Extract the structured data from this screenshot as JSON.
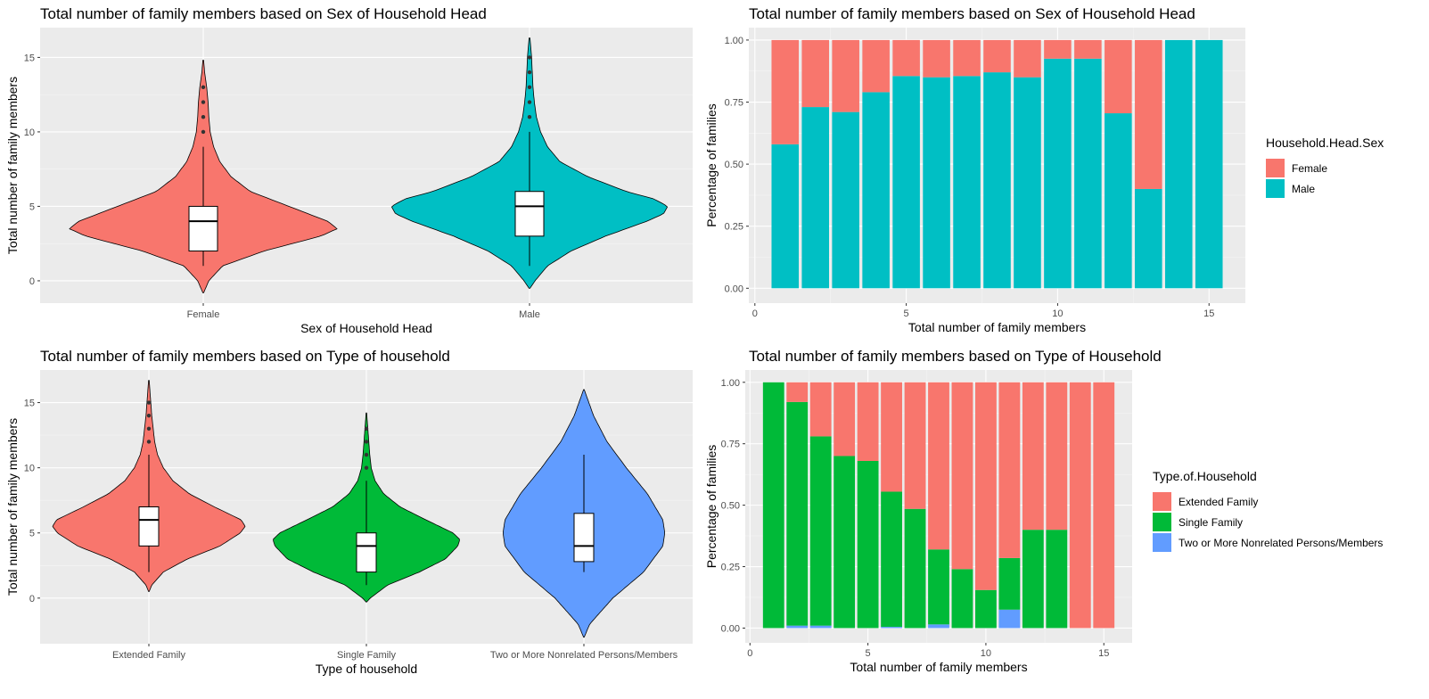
{
  "chart_data": [
    {
      "type": "violin",
      "title": "Total number of family members based on Sex of Household Head",
      "xlabel": "Sex of Household Head",
      "ylabel": "Total number of family members",
      "categories": [
        "Female",
        "Male"
      ],
      "colors": [
        "#F8766D",
        "#00BFC4"
      ],
      "ylim": [
        -1.5,
        17
      ],
      "yticks": [
        0,
        5,
        10,
        15
      ],
      "violins": [
        {
          "category": "Female",
          "profile": [
            [
              -0.8,
              0.003
            ],
            [
              0,
              0.04
            ],
            [
              1,
              0.14
            ],
            [
              2,
              0.44
            ],
            [
              3,
              0.85
            ],
            [
              3.5,
              0.97
            ],
            [
              4,
              0.9
            ],
            [
              5,
              0.62
            ],
            [
              6,
              0.34
            ],
            [
              7,
              0.2
            ],
            [
              8,
              0.12
            ],
            [
              9,
              0.075
            ],
            [
              10,
              0.05
            ],
            [
              11,
              0.04
            ],
            [
              12,
              0.035
            ],
            [
              13,
              0.025
            ],
            [
              14,
              0.01
            ],
            [
              14.8,
              0.003
            ]
          ]
        },
        {
          "category": "Male",
          "profile": [
            [
              -0.5,
              0.003
            ],
            [
              0,
              0.04
            ],
            [
              1,
              0.13
            ],
            [
              2,
              0.3
            ],
            [
              3,
              0.55
            ],
            [
              4,
              0.85
            ],
            [
              4.5,
              0.97
            ],
            [
              5,
              1.0
            ],
            [
              5.5,
              0.9
            ],
            [
              6,
              0.7
            ],
            [
              7,
              0.42
            ],
            [
              8,
              0.22
            ],
            [
              9,
              0.13
            ],
            [
              10,
              0.08
            ],
            [
              11,
              0.05
            ],
            [
              12,
              0.035
            ],
            [
              13,
              0.025
            ],
            [
              14,
              0.02
            ],
            [
              15,
              0.015
            ],
            [
              16.3,
              0.003
            ]
          ]
        }
      ],
      "boxplots": [
        {
          "category": "Female",
          "min": 1,
          "q1": 2,
          "median": 4,
          "q3": 5,
          "max": 9,
          "outliers": [
            10,
            11,
            12,
            13
          ]
        },
        {
          "category": "Male",
          "min": 1,
          "q1": 3,
          "median": 5,
          "q3": 6,
          "max": 10,
          "outliers": [
            11,
            12,
            13,
            14,
            15
          ]
        }
      ]
    },
    {
      "type": "bar",
      "stacked": "fill",
      "title": "Total number of family members based on Sex of Household Head",
      "xlabel": "Total number of family members",
      "ylabel": "Percentage of families",
      "legend_title": "Household.Head.Sex",
      "legend_position": "right",
      "xlim": [
        -0.2,
        16.2
      ],
      "xticks": [
        0,
        5,
        10,
        15
      ],
      "ylim": [
        -0.06,
        1.05
      ],
      "yticks": [
        "0.00",
        "0.25",
        "0.50",
        "0.75",
        "1.00"
      ],
      "x": [
        1,
        2,
        3,
        4,
        5,
        6,
        7,
        8,
        9,
        10,
        11,
        12,
        13,
        14,
        15
      ],
      "series": [
        {
          "name": "Female",
          "color": "#F8766D",
          "values": [
            0.42,
            0.27,
            0.29,
            0.21,
            0.145,
            0.15,
            0.145,
            0.13,
            0.15,
            0.075,
            0.075,
            0.295,
            0.6,
            0,
            0
          ]
        },
        {
          "name": "Male",
          "color": "#00BFC4",
          "values": [
            0.58,
            0.73,
            0.71,
            0.79,
            0.855,
            0.85,
            0.855,
            0.87,
            0.85,
            0.925,
            0.925,
            0.705,
            0.4,
            1,
            1
          ]
        }
      ]
    },
    {
      "type": "violin",
      "title": "Total number of family members based on Type of household",
      "xlabel": "Type of household",
      "ylabel": "Total number of family members",
      "categories": [
        "Extended Family",
        "Single Family",
        "Two or More Nonrelated Persons/Members"
      ],
      "colors": [
        "#F8766D",
        "#00BA38",
        "#619CFF"
      ],
      "ylim": [
        -3.5,
        17.5
      ],
      "yticks": [
        0,
        5,
        10,
        15
      ],
      "violins": [
        {
          "category": "Extended Family",
          "profile": [
            [
              0.5,
              0.003
            ],
            [
              1,
              0.03
            ],
            [
              2,
              0.15
            ],
            [
              3,
              0.4
            ],
            [
              4,
              0.74
            ],
            [
              5,
              0.95
            ],
            [
              5.5,
              1.0
            ],
            [
              6,
              0.96
            ],
            [
              7,
              0.68
            ],
            [
              8,
              0.42
            ],
            [
              9,
              0.25
            ],
            [
              10,
              0.15
            ],
            [
              11,
              0.09
            ],
            [
              12,
              0.06
            ],
            [
              13,
              0.045
            ],
            [
              14,
              0.03
            ],
            [
              15,
              0.02
            ],
            [
              16.7,
              0.003
            ]
          ]
        },
        {
          "category": "Single Family",
          "profile": [
            [
              -0.3,
              0.003
            ],
            [
              0,
              0.04
            ],
            [
              1,
              0.22
            ],
            [
              2,
              0.55
            ],
            [
              3,
              0.82
            ],
            [
              4,
              0.95
            ],
            [
              4.5,
              0.97
            ],
            [
              5,
              0.9
            ],
            [
              6,
              0.62
            ],
            [
              7,
              0.35
            ],
            [
              8,
              0.18
            ],
            [
              9,
              0.09
            ],
            [
              10,
              0.05
            ],
            [
              11,
              0.035
            ],
            [
              12,
              0.025
            ],
            [
              13,
              0.015
            ],
            [
              14.2,
              0.003
            ]
          ]
        },
        {
          "category": "Two or More Nonrelated Persons/Members",
          "profile": [
            [
              -3,
              0.003
            ],
            [
              -2,
              0.06
            ],
            [
              0,
              0.3
            ],
            [
              2,
              0.62
            ],
            [
              4,
              0.82
            ],
            [
              5,
              0.84
            ],
            [
              6,
              0.82
            ],
            [
              8,
              0.66
            ],
            [
              10,
              0.44
            ],
            [
              12,
              0.24
            ],
            [
              14,
              0.1
            ],
            [
              16,
              0.003
            ]
          ]
        }
      ],
      "boxplots": [
        {
          "category": "Extended Family",
          "min": 2,
          "q1": 4,
          "median": 6,
          "q3": 7,
          "max": 11,
          "outliers": [
            12,
            13,
            14,
            15
          ]
        },
        {
          "category": "Single Family",
          "min": 1,
          "q1": 2,
          "median": 4,
          "q3": 5,
          "max": 9,
          "outliers": [
            10,
            11,
            12,
            13
          ]
        },
        {
          "category": "Two or More Nonrelated Persons/Members",
          "min": 2,
          "q1": 2.8,
          "median": 4,
          "q3": 6.5,
          "max": 11,
          "outliers": []
        }
      ]
    },
    {
      "type": "bar",
      "stacked": "fill",
      "title": "Total number of family members based on Type of Household",
      "xlabel": "Total number of family members",
      "ylabel": "Percentage of families",
      "legend_title": "Type.of.Household",
      "legend_position": "right",
      "xlim": [
        -0.2,
        16.2
      ],
      "xticks": [
        0,
        5,
        10,
        15
      ],
      "ylim": [
        -0.06,
        1.05
      ],
      "yticks": [
        "0.00",
        "0.25",
        "0.50",
        "0.75",
        "1.00"
      ],
      "x": [
        1,
        2,
        3,
        4,
        5,
        6,
        7,
        8,
        9,
        10,
        11,
        12,
        13,
        14,
        15
      ],
      "series": [
        {
          "name": "Extended Family",
          "color": "#F8766D",
          "values": [
            0,
            0.08,
            0.22,
            0.3,
            0.32,
            0.445,
            0.515,
            0.68,
            0.76,
            0.845,
            0.715,
            0.6,
            0.6,
            1,
            1
          ]
        },
        {
          "name": "Single Family",
          "color": "#00BA38",
          "values": [
            1,
            0.91,
            0.77,
            0.7,
            0.68,
            0.55,
            0.485,
            0.305,
            0.24,
            0.155,
            0.21,
            0.4,
            0.4,
            0,
            0
          ]
        },
        {
          "name": "Two or More Nonrelated Persons/Members",
          "color": "#619CFF",
          "values": [
            0,
            0.01,
            0.01,
            0,
            0,
            0.005,
            0,
            0.015,
            0,
            0,
            0.075,
            0,
            0,
            0,
            0
          ]
        }
      ]
    }
  ]
}
